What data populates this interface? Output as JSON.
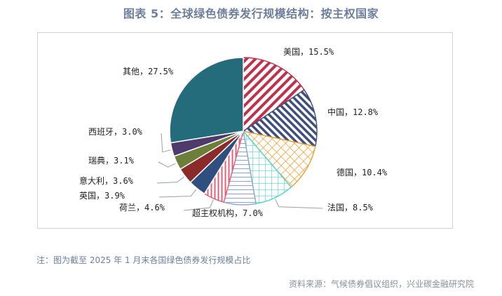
{
  "title": "图表 5：全球绿色债券发行规模结构：按主权国家",
  "note": "注：图为截至 2025 年 1 月末各国绿色债券发行规模占比",
  "source": "资料来源：气候债券倡议组织，兴业碳金融研究院",
  "chart_data": {
    "type": "pie",
    "unit": "%",
    "slices": [
      {
        "label": "美国",
        "value": 15.5,
        "text": "美国，15.5%",
        "color": "#c0304a",
        "pattern": "diag"
      },
      {
        "label": "中国",
        "value": 12.8,
        "text": "中国，12.8%",
        "color": "#3d4f7a",
        "pattern": "diag"
      },
      {
        "label": "德国",
        "value": 10.4,
        "text": "德国，10.4%",
        "color": "#f0a030",
        "pattern": "cross"
      },
      {
        "label": "法国",
        "value": 8.5,
        "text": "法国，8.5%",
        "color": "#4fd3cf",
        "pattern": "grid"
      },
      {
        "label": "超主权机构",
        "value": 7.0,
        "text": "超主权机构，7.0%",
        "color": "#8fa6cf",
        "pattern": "hlines"
      },
      {
        "label": "荷兰",
        "value": 4.6,
        "text": "荷兰，4.6%",
        "color": "#e0607a",
        "pattern": "vlines"
      },
      {
        "label": "英国",
        "value": 3.9,
        "text": "英国，3.9%",
        "color": "#2f4f7f",
        "pattern": "solid"
      },
      {
        "label": "意大利",
        "value": 3.6,
        "text": "意大利，3.6%",
        "color": "#8b2a2a",
        "pattern": "solid"
      },
      {
        "label": "瑞典",
        "value": 3.1,
        "text": "瑞典，3.1%",
        "color": "#6b7f3a",
        "pattern": "solid"
      },
      {
        "label": "西班牙",
        "value": 3.0,
        "text": "西班牙，3.0%",
        "color": "#4e3b6b",
        "pattern": "solid"
      },
      {
        "label": "其他",
        "value": 27.5,
        "text": "其他，27.5%",
        "color": "#246b7c",
        "pattern": "solid"
      }
    ]
  }
}
